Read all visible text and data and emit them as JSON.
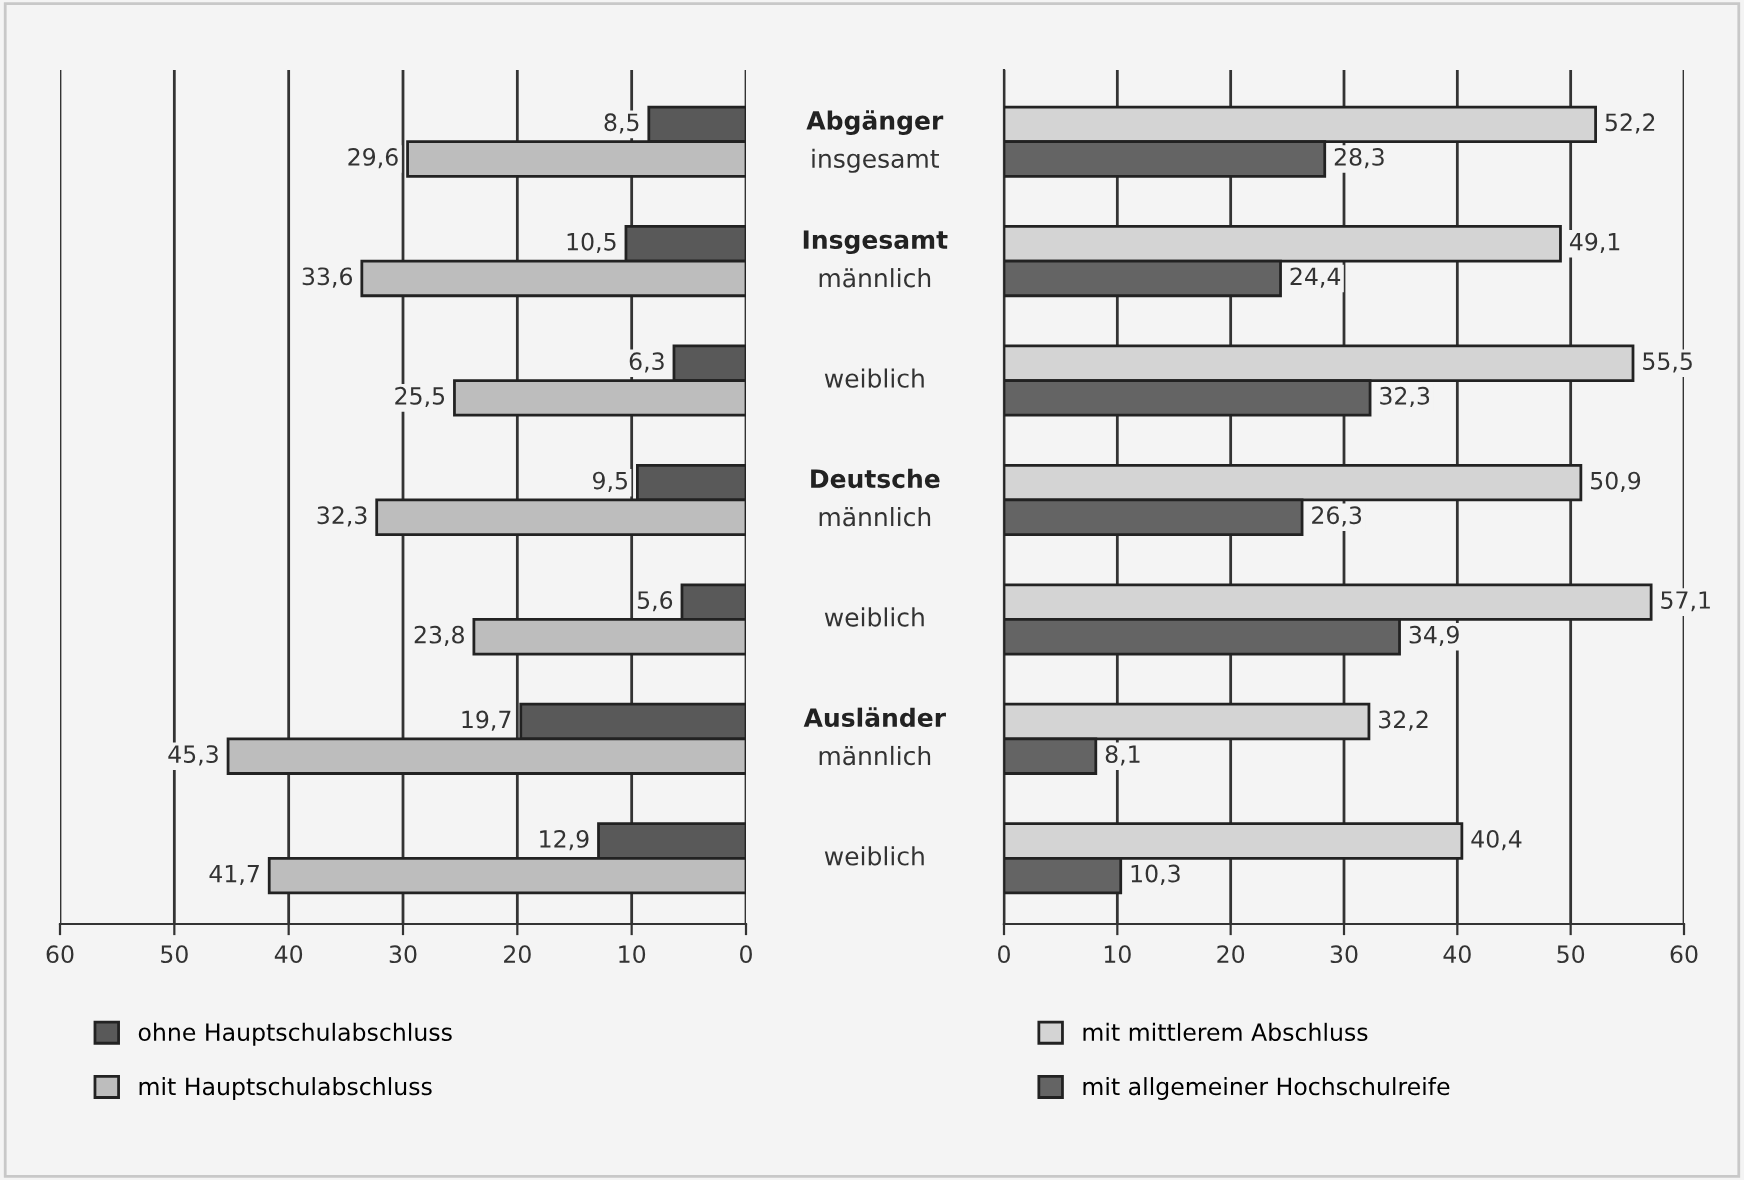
{
  "chart_data": [
    {
      "type": "bar",
      "orientation": "horizontal",
      "categories": [
        null,
        null,
        null,
        null,
        null,
        null,
        null
      ],
      "series": [
        {
          "name": "ohne Hauptschulabschluss",
          "color": "#595959",
          "values": [
            8.5,
            10.5,
            6.3,
            9.5,
            5.6,
            19.7,
            12.9
          ],
          "value_labels": [
            "8,5",
            "10,5",
            "6,3",
            "9,5",
            "5,6",
            "19,7",
            "12,9"
          ]
        },
        {
          "name": "mit Hauptschulabschluss",
          "color": "#bdbdbd",
          "values": [
            29.6,
            33.6,
            25.5,
            32.3,
            23.8,
            45.3,
            41.7
          ],
          "value_labels": [
            "29,6",
            "33,6",
            "25,5",
            "32,3",
            "23,8",
            "45,3",
            "41,7"
          ]
        }
      ],
      "xlim": [
        60,
        0
      ],
      "xticks": [
        60,
        50,
        40,
        30,
        20,
        10,
        0
      ],
      "grid": "x",
      "legend": "bottom left",
      "tick_labels": "x"
    },
    {
      "type": "bar",
      "orientation": "horizontal",
      "categories": [
        "Abgänger\ninsgesamt",
        "Insgesamt\nmännlich",
        "weiblich",
        "Deutsche\nmännlich",
        "weiblich",
        "Ausländer\nmännlich",
        "weiblich"
      ],
      "series": [
        {
          "name": "mit mittlerem Abschluss",
          "color": "#d4d4d4",
          "values": [
            52.2,
            49.1,
            55.5,
            50.9,
            57.1,
            32.2,
            40.4
          ],
          "value_labels": [
            "52,2",
            "49,1",
            "55,5",
            "50,9",
            "57,1",
            "32,2",
            "40,4"
          ]
        },
        {
          "name": "mit allgemeiner Hochschulreife",
          "color": "#646464",
          "values": [
            28.3,
            24.4,
            32.3,
            26.3,
            34.9,
            8.1,
            10.3
          ],
          "value_labels": [
            "28,3",
            "24,4",
            "32,3",
            "26,3",
            "34,9",
            "8,1",
            "10,3"
          ]
        }
      ],
      "xlim": [
        0,
        60
      ],
      "xticks": [
        0,
        10,
        20,
        30,
        40,
        50,
        60
      ],
      "grid": "x",
      "legend": "bottom left"
    }
  ]
}
